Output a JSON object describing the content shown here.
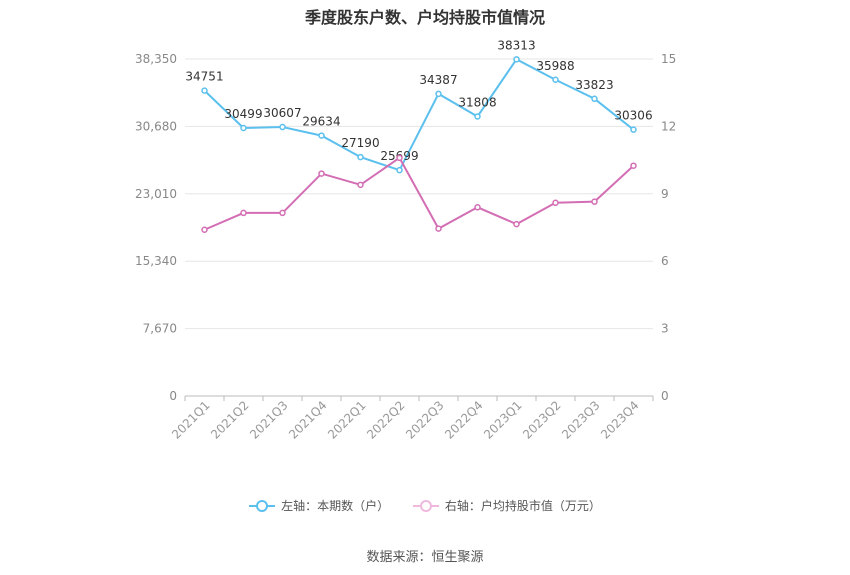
{
  "chart_data": {
    "type": "line",
    "title": "季度股东户数、户均持股市值情况",
    "categories": [
      "2021Q1",
      "2021Q2",
      "2021Q3",
      "2021Q4",
      "2022Q1",
      "2022Q2",
      "2022Q3",
      "2022Q4",
      "2023Q1",
      "2023Q2",
      "2023Q3",
      "2023Q4"
    ],
    "left_axis": {
      "ticks": [
        "0",
        "7,670",
        "15,340",
        "23,010",
        "30,680",
        "38,350"
      ],
      "min": 0,
      "max": 38350
    },
    "right_axis": {
      "ticks": [
        "0",
        "3",
        "6",
        "9",
        "12",
        "15"
      ],
      "min": 0,
      "max": 15
    },
    "series": [
      {
        "name": "左轴：本期数（户）",
        "axis": "left",
        "color": "#5bc0ee",
        "values": [
          34751,
          30499,
          30607,
          29634,
          27190,
          25699,
          34387,
          31808,
          38313,
          35988,
          33823,
          30306
        ],
        "labels": [
          "34751",
          "30499",
          "30607",
          "29634",
          "27190",
          "25699",
          "34387",
          "31808",
          "38313",
          "35988",
          "33823",
          "30306"
        ]
      },
      {
        "name": "右轴：户均持股市值（万元）",
        "axis": "right",
        "color": "#d36eb4",
        "values": [
          7.4,
          8.15,
          8.15,
          9.9,
          9.4,
          10.6,
          7.45,
          8.4,
          7.65,
          8.6,
          8.65,
          10.25
        ]
      }
    ],
    "grid": true,
    "legend_position": "bottom"
  },
  "source": "数据来源：恒生聚源"
}
